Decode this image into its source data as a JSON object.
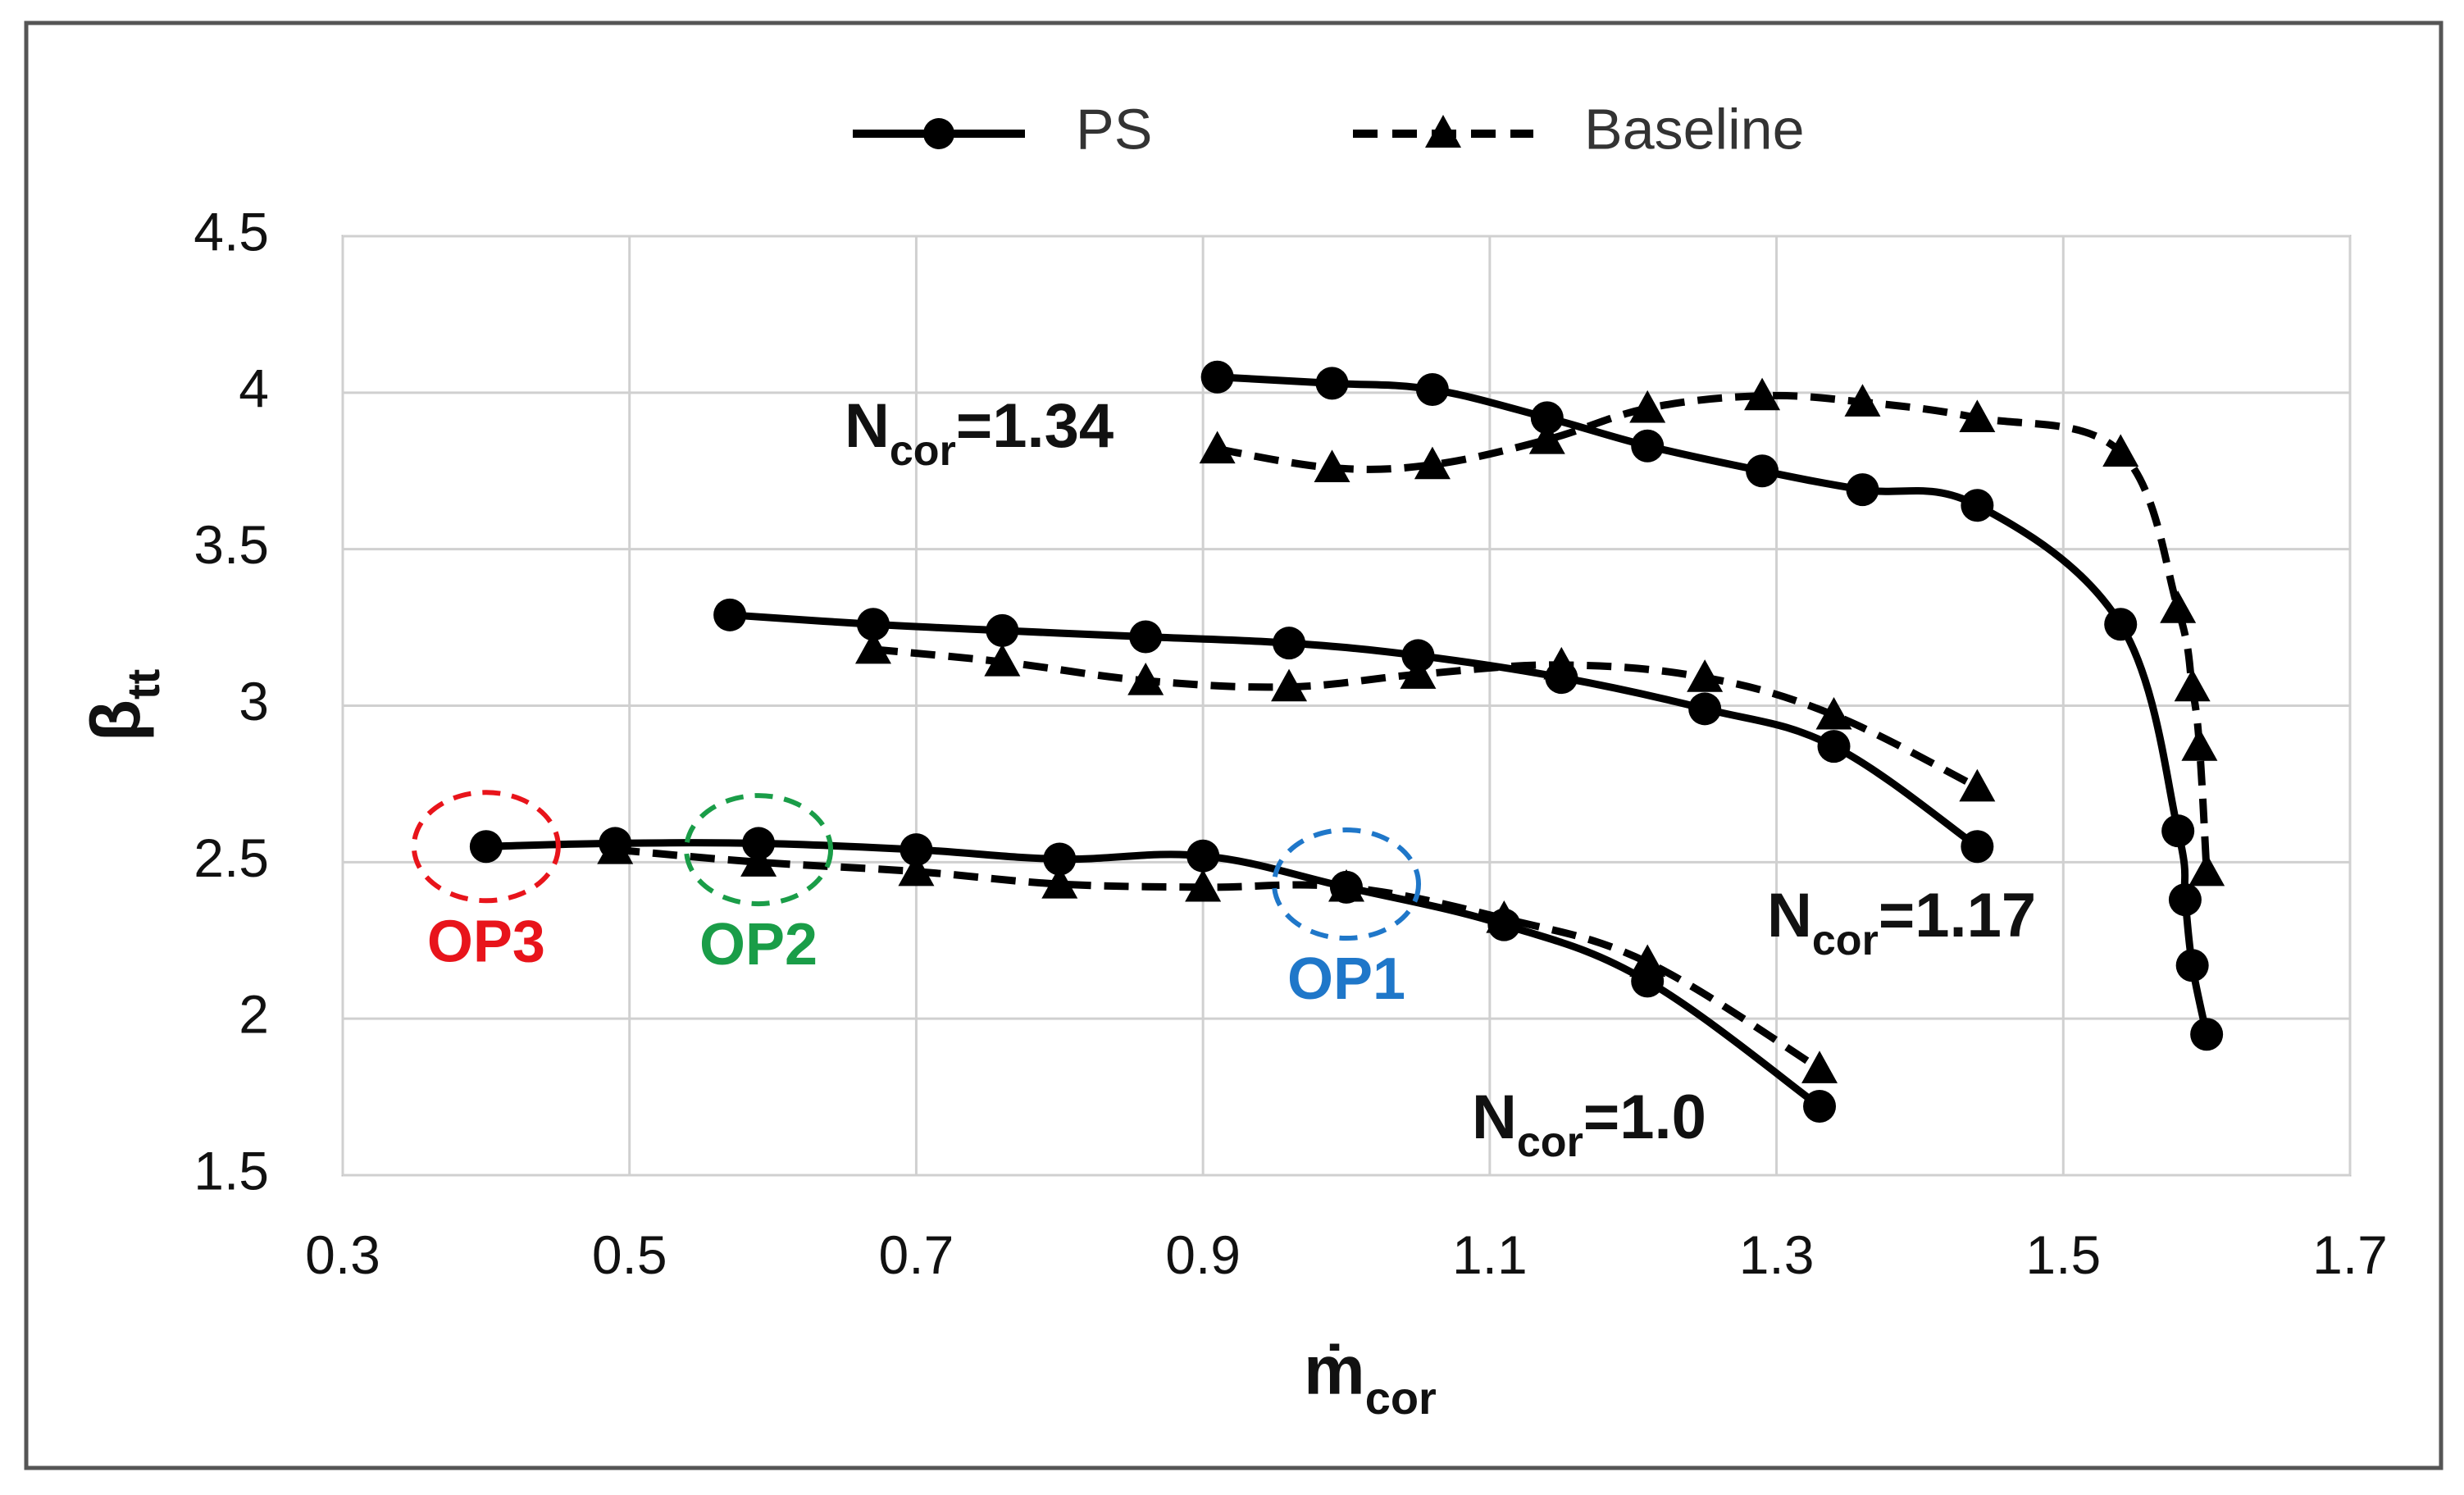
{
  "chart_data": {
    "type": "line",
    "xlabel": {
      "main": "ṁ",
      "sub": "cor"
    },
    "ylabel": {
      "main": "β",
      "sub": "tt"
    },
    "xlim": [
      0.3,
      1.7
    ],
    "ylim": [
      1.5,
      4.5
    ],
    "xticks": [
      "0.3",
      "0.5",
      "0.7",
      "0.9",
      "1.1",
      "1.3",
      "1.5",
      "1.7"
    ],
    "yticks": [
      "1.5",
      "2",
      "2.5",
      "3",
      "3.5",
      "4",
      "4.5"
    ],
    "grid": true,
    "legend": {
      "position": "top",
      "entries": [
        {
          "name": "PS",
          "style": "solid",
          "marker": "circle"
        },
        {
          "name": "Baseline",
          "style": "dashed",
          "marker": "triangle"
        }
      ]
    },
    "series": [
      {
        "name": "PS",
        "speed": "1.0",
        "style": "solid",
        "marker": "circle",
        "x": [
          0.4,
          0.49,
          0.59,
          0.7,
          0.8,
          0.9,
          1.0,
          1.11,
          1.21,
          1.33
        ],
        "y": [
          2.55,
          2.56,
          2.56,
          2.54,
          2.51,
          2.52,
          2.42,
          2.3,
          2.12,
          1.72
        ]
      },
      {
        "name": "Baseline",
        "speed": "1.0",
        "style": "dashed",
        "marker": "triangle",
        "x": [
          0.49,
          0.59,
          0.7,
          0.8,
          0.9,
          1.0,
          1.11,
          1.21,
          1.33
        ],
        "y": [
          2.54,
          2.5,
          2.47,
          2.43,
          2.42,
          2.42,
          2.32,
          2.18,
          1.84
        ]
      },
      {
        "name": "PS",
        "speed": "1.17",
        "style": "solid",
        "marker": "circle",
        "x": [
          0.57,
          0.67,
          0.76,
          0.86,
          0.96,
          1.05,
          1.15,
          1.25,
          1.34,
          1.44
        ],
        "y": [
          3.29,
          3.26,
          3.24,
          3.22,
          3.2,
          3.16,
          3.09,
          2.99,
          2.87,
          2.55
        ]
      },
      {
        "name": "Baseline",
        "speed": "1.17",
        "style": "dashed",
        "marker": "triangle",
        "x": [
          0.67,
          0.76,
          0.86,
          0.96,
          1.05,
          1.15,
          1.25,
          1.34,
          1.44
        ],
        "y": [
          3.18,
          3.14,
          3.08,
          3.06,
          3.1,
          3.13,
          3.09,
          2.97,
          2.74
        ]
      },
      {
        "name": "PS",
        "speed": "1.34",
        "style": "solid",
        "marker": "circle",
        "x": [
          0.91,
          0.99,
          1.06,
          1.14,
          1.21,
          1.29,
          1.36,
          1.44,
          1.54,
          1.58,
          1.585,
          1.59,
          1.6
        ],
        "y": [
          4.05,
          4.03,
          4.01,
          3.92,
          3.83,
          3.75,
          3.69,
          3.64,
          3.26,
          2.6,
          2.38,
          2.17,
          1.95
        ]
      },
      {
        "name": "Baseline",
        "speed": "1.34",
        "style": "dashed",
        "marker": "triangle",
        "x": [
          0.91,
          0.99,
          1.06,
          1.14,
          1.21,
          1.29,
          1.36,
          1.44,
          1.54,
          1.58,
          1.59,
          1.595,
          1.6
        ],
        "y": [
          3.82,
          3.76,
          3.77,
          3.85,
          3.95,
          3.99,
          3.97,
          3.92,
          3.81,
          3.31,
          3.06,
          2.87,
          2.47
        ]
      }
    ],
    "annotations": {
      "speed_lines": [
        {
          "id": "n134",
          "prefix": "N",
          "sub": "cor",
          "value": "=1.34",
          "x": 0.68,
          "y": 3.9
        },
        {
          "id": "n117",
          "prefix": "N",
          "sub": "cor",
          "value": "=1.17",
          "x": 1.5,
          "y": 2.3
        },
        {
          "id": "n10",
          "prefix": "N",
          "sub": "cor",
          "value": "=1.0",
          "x": 1.31,
          "y": 1.64
        }
      ],
      "operating_points": [
        {
          "id": "op3",
          "label": "OP3",
          "x": 0.4,
          "y": 2.55,
          "color": "#e8141b"
        },
        {
          "id": "op2",
          "label": "OP2",
          "x": 0.59,
          "y": 2.54,
          "color": "#1a9d48"
        },
        {
          "id": "op1",
          "label": "OP1",
          "x": 1.0,
          "y": 2.43,
          "color": "#1f77c9"
        }
      ]
    }
  }
}
